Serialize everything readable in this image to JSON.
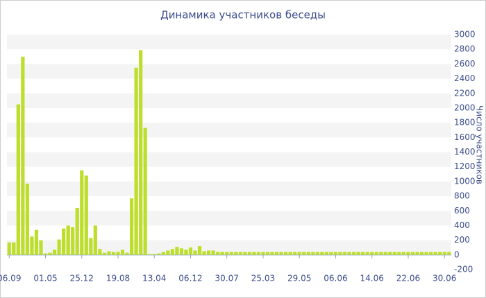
{
  "chart_data": {
    "type": "bar",
    "title": "Динамика участников беседы",
    "y_label": "Число участников",
    "categories": [
      "06.09",
      null,
      null,
      null,
      null,
      null,
      null,
      null,
      "01.05",
      null,
      null,
      null,
      null,
      null,
      null,
      null,
      "25.12",
      null,
      null,
      null,
      null,
      null,
      null,
      null,
      "19.08",
      null,
      null,
      null,
      null,
      null,
      null,
      null,
      "13.04",
      null,
      null,
      null,
      null,
      null,
      null,
      null,
      "06.12",
      null,
      null,
      null,
      null,
      null,
      null,
      null,
      "30.07",
      null,
      null,
      null,
      null,
      null,
      null,
      null,
      "25.03",
      null,
      null,
      null,
      null,
      null,
      null,
      null,
      "29.05",
      null,
      null,
      null,
      null,
      null,
      null,
      null,
      "06.06",
      null,
      null,
      null,
      null,
      null,
      null,
      null,
      "14.06",
      null,
      null,
      null,
      null,
      null,
      null,
      null,
      "22.06",
      null,
      null,
      null,
      null,
      null,
      null,
      null,
      "30.06",
      null
    ],
    "values": [
      170,
      170,
      2050,
      2700,
      970,
      250,
      340,
      200,
      20,
      30,
      70,
      210,
      360,
      400,
      380,
      640,
      1150,
      1080,
      230,
      400,
      80,
      30,
      50,
      40,
      40,
      70,
      30,
      770,
      2550,
      2790,
      1730,
      10,
      10,
      20,
      40,
      60,
      80,
      110,
      90,
      70,
      100,
      60,
      120,
      50,
      60,
      60,
      40,
      40,
      40,
      40,
      40,
      40,
      40,
      40,
      40,
      40,
      40,
      40,
      40,
      40,
      40,
      40,
      40,
      40,
      40,
      40,
      40,
      40,
      40,
      40,
      40,
      40,
      40,
      40,
      40,
      40,
      40,
      40,
      40,
      40,
      40,
      40,
      40,
      40,
      40,
      40,
      40,
      40,
      40,
      40,
      40,
      40,
      40,
      40,
      40,
      40,
      40,
      40
    ],
    "color": "#bddf2c",
    "ylim": [
      -200,
      3000
    ],
    "yticks": [
      -200,
      0,
      200,
      400,
      600,
      800,
      1000,
      1200,
      1400,
      1600,
      1800,
      2000,
      2200,
      2400,
      2600,
      2800,
      3000
    ],
    "grid": true,
    "y_axis_side": "right"
  }
}
